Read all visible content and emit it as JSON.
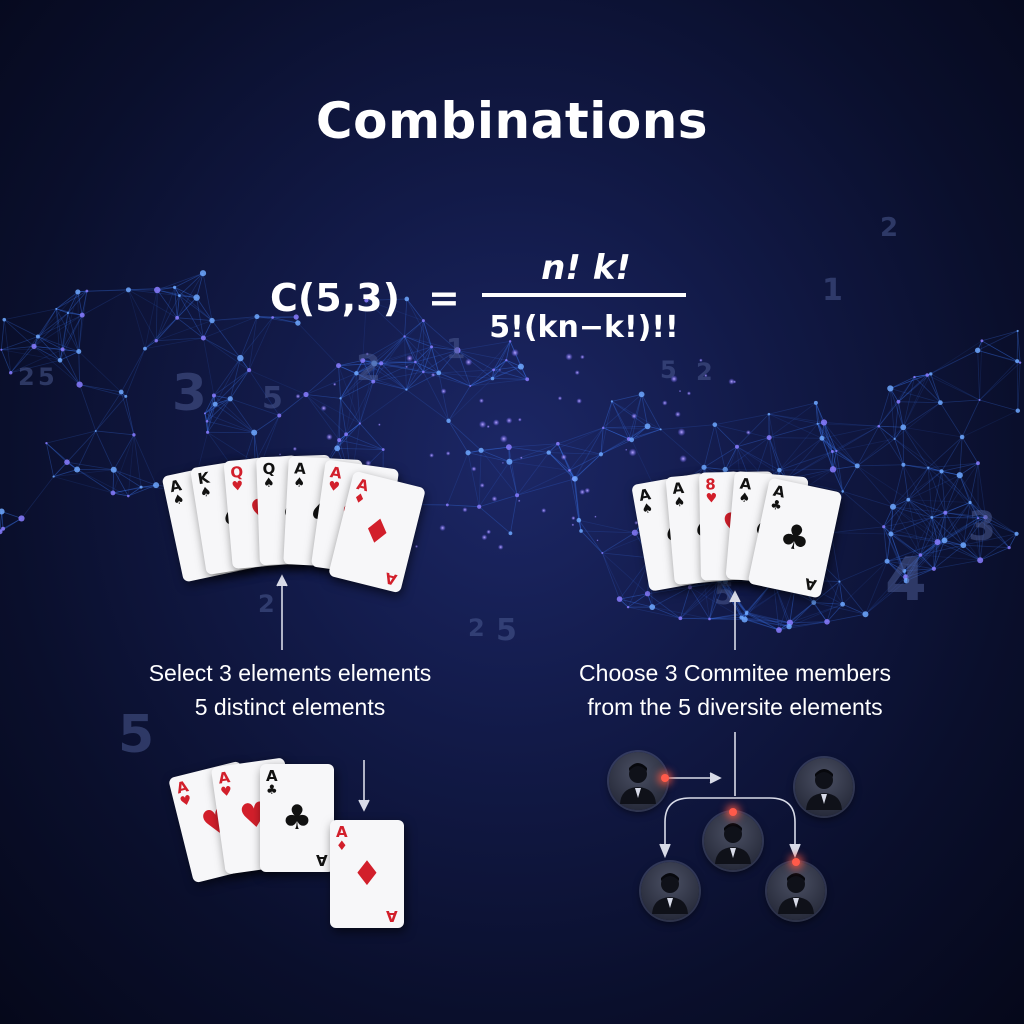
{
  "title": "Combinations",
  "formula": {
    "lhs": "C(5,3)",
    "eq": "=",
    "numerator": "n!  k!",
    "denominator": "5!(kn−k!)!!"
  },
  "left_panel": {
    "caption_line1": "Select 3 elements elements",
    "caption_line2": "5 distinct elements",
    "fan_cards": [
      {
        "rank": "A",
        "suit": "♠",
        "color": "black"
      },
      {
        "rank": "K",
        "suit": "♠",
        "color": "black"
      },
      {
        "rank": "Q",
        "suit": "♥",
        "color": "red"
      },
      {
        "rank": "Q",
        "suit": "♠",
        "color": "black"
      },
      {
        "rank": "A",
        "suit": "♠",
        "color": "black"
      },
      {
        "rank": "A",
        "suit": "♥",
        "color": "red"
      },
      {
        "rank": "A",
        "suit": "♦",
        "color": "red"
      }
    ],
    "selected_cards": [
      {
        "rank": "A",
        "suit": "♥",
        "color": "red"
      },
      {
        "rank": "A",
        "suit": "♥",
        "color": "red"
      },
      {
        "rank": "A",
        "suit": "♣",
        "color": "black"
      },
      {
        "rank": "A",
        "suit": "♦",
        "color": "red"
      }
    ]
  },
  "right_panel": {
    "caption_line1": "Choose 3 Commitee members",
    "caption_line2": "from the 5 diversite elements",
    "fan_cards": [
      {
        "rank": "A",
        "suit": "♠",
        "color": "black"
      },
      {
        "rank": "A",
        "suit": "♠",
        "color": "black"
      },
      {
        "rank": "8",
        "suit": "♥",
        "color": "red"
      },
      {
        "rank": "A",
        "suit": "♠",
        "color": "black"
      },
      {
        "rank": "A",
        "suit": "♣",
        "color": "black"
      }
    ],
    "members": [
      "person-icon",
      "person-icon",
      "person-icon",
      "person-icon",
      "person-icon"
    ]
  },
  "background_digits": [
    "2",
    "5",
    "3",
    "5",
    "2",
    "1",
    "5",
    "2",
    "2",
    "5",
    "5",
    "2",
    "1",
    "3",
    "4",
    "2",
    "5"
  ],
  "colors": {
    "background": "#0a0f2c",
    "network": "#3f7fff",
    "card_red": "#d21f2b",
    "highlight": "#ff5a4a"
  }
}
